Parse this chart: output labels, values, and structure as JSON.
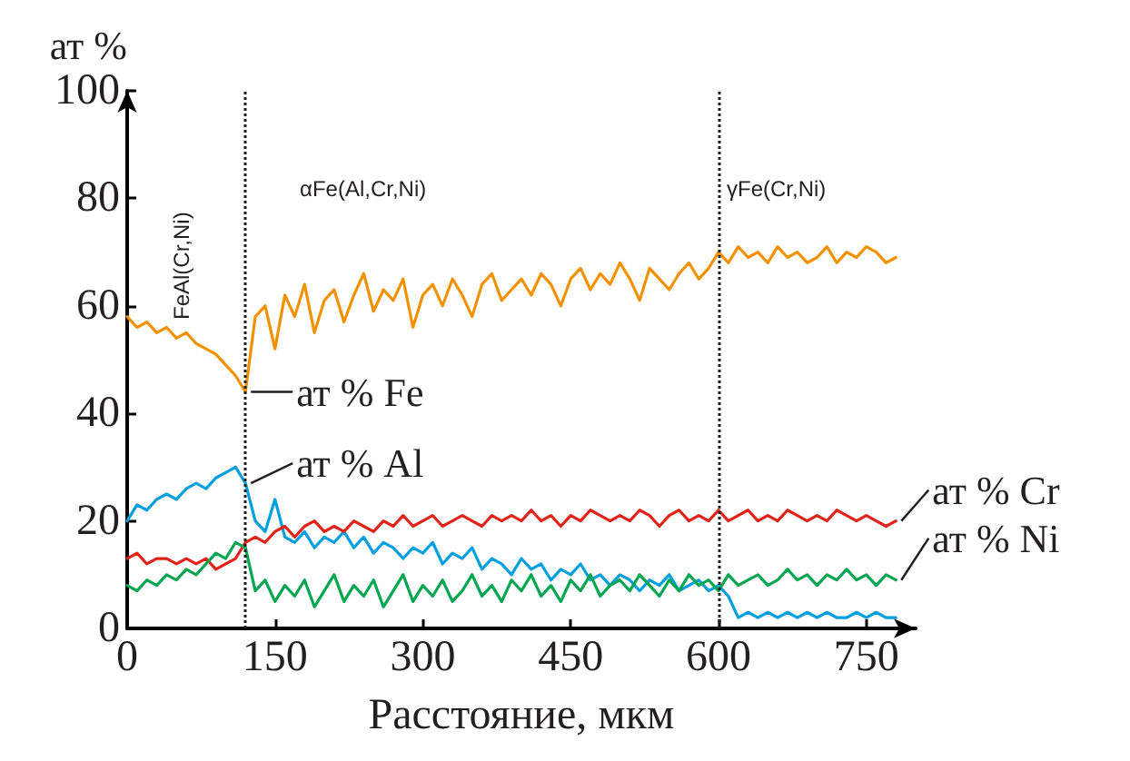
{
  "chart_data": {
    "type": "line",
    "xlabel": "Расстояние, мкм",
    "ylabel": "ат %",
    "x": [
      0,
      10,
      20,
      30,
      40,
      50,
      60,
      70,
      80,
      90,
      100,
      110,
      120,
      130,
      140,
      150,
      160,
      170,
      180,
      190,
      200,
      210,
      220,
      230,
      240,
      250,
      260,
      270,
      280,
      290,
      300,
      310,
      320,
      330,
      340,
      350,
      360,
      370,
      380,
      390,
      400,
      410,
      420,
      430,
      440,
      450,
      460,
      470,
      480,
      490,
      500,
      510,
      520,
      530,
      540,
      550,
      560,
      570,
      580,
      590,
      600,
      610,
      620,
      630,
      640,
      650,
      660,
      670,
      680,
      690,
      700,
      710,
      720,
      730,
      740,
      750,
      760,
      770,
      780
    ],
    "series": [
      {
        "name": "ат % Fe",
        "color": "#f39200",
        "values": [
          58,
          56,
          57,
          55,
          56,
          54,
          55,
          53,
          52,
          51,
          49,
          47,
          44,
          58,
          60,
          52,
          62,
          58,
          64,
          55,
          61,
          63,
          57,
          62,
          66,
          59,
          63,
          61,
          65,
          56,
          62,
          64,
          60,
          65,
          62,
          58,
          64,
          66,
          61,
          63,
          65,
          62,
          66,
          64,
          60,
          65,
          67,
          63,
          66,
          64,
          68,
          65,
          61,
          67,
          65,
          63,
          66,
          68,
          65,
          67,
          70,
          68,
          71,
          69,
          70,
          68,
          71,
          69,
          70,
          68,
          69,
          71,
          68,
          70,
          69,
          71,
          70,
          68,
          69
        ]
      },
      {
        "name": "ат % Al",
        "color": "#00a0e0",
        "values": [
          20,
          23,
          22,
          24,
          25,
          24,
          26,
          27,
          26,
          28,
          29,
          30,
          27,
          20,
          18,
          24,
          17,
          16,
          18,
          15,
          17,
          16,
          18,
          15,
          17,
          14,
          16,
          15,
          13,
          15,
          14,
          16,
          12,
          14,
          13,
          15,
          11,
          13,
          12,
          10,
          13,
          11,
          12,
          9,
          11,
          10,
          12,
          9,
          10,
          8,
          10,
          9,
          7,
          9,
          8,
          10,
          7,
          8,
          9,
          7,
          8,
          6,
          2,
          3,
          2,
          3,
          2,
          3,
          2,
          3,
          2,
          3,
          2,
          2,
          3,
          2,
          3,
          2,
          2
        ]
      },
      {
        "name": "ат % Cr",
        "color": "#e2231a",
        "values": [
          13,
          14,
          12,
          13,
          13,
          12,
          13,
          12,
          13,
          11,
          12,
          13,
          16,
          17,
          16,
          18,
          19,
          17,
          19,
          20,
          18,
          19,
          18,
          20,
          19,
          18,
          20,
          19,
          21,
          19,
          20,
          21,
          19,
          20,
          21,
          20,
          19,
          21,
          20,
          21,
          20,
          22,
          20,
          21,
          19,
          21,
          20,
          22,
          21,
          20,
          21,
          20,
          22,
          21,
          19,
          21,
          22,
          20,
          21,
          20,
          22,
          20,
          21,
          22,
          20,
          21,
          20,
          22,
          21,
          20,
          21,
          20,
          22,
          21,
          20,
          21,
          20,
          19,
          20
        ]
      },
      {
        "name": "ат % Ni",
        "color": "#00a650",
        "values": [
          8,
          7,
          9,
          8,
          10,
          9,
          11,
          10,
          12,
          14,
          13,
          16,
          15,
          7,
          9,
          5,
          8,
          6,
          9,
          4,
          7,
          10,
          5,
          8,
          6,
          9,
          4,
          7,
          10,
          5,
          8,
          6,
          9,
          5,
          7,
          10,
          6,
          8,
          5,
          9,
          7,
          10,
          6,
          8,
          5,
          9,
          7,
          10,
          6,
          8,
          9,
          7,
          10,
          8,
          6,
          9,
          7,
          10,
          8,
          9,
          7,
          10,
          8,
          9,
          10,
          8,
          9,
          11,
          9,
          10,
          8,
          10,
          9,
          11,
          9,
          10,
          8,
          10,
          9
        ]
      }
    ],
    "xlim": [
      0,
      800
    ],
    "ylim": [
      0,
      100
    ],
    "xticks": [
      0,
      150,
      300,
      450,
      600,
      750
    ],
    "yticks": [
      0,
      20,
      40,
      60,
      80,
      100
    ],
    "ref_lines": [
      {
        "axis": "x",
        "value": 120,
        "line_style": "dotted"
      },
      {
        "axis": "x",
        "value": 600,
        "line_style": "dotted"
      }
    ],
    "annotations": [
      "FeAl(Cr,Ni)",
      "αFe(Al,Cr,Ni)",
      "γFe(Cr,Ni)"
    ],
    "grid": false,
    "legend": false,
    "marker": "none",
    "line_style": "solid"
  }
}
